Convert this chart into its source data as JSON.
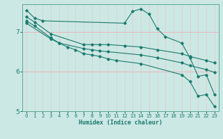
{
  "xlabel": "Humidex (Indice chaleur)",
  "ylabel": "",
  "bg_color": "#cce8e4",
  "grid_color": "#e8c8c8",
  "line_color": "#1a7a6e",
  "xlim": [
    -0.5,
    23.5
  ],
  "ylim": [
    5.0,
    7.7
  ],
  "yticks": [
    5,
    6,
    7
  ],
  "xticks": [
    0,
    1,
    2,
    3,
    4,
    5,
    6,
    7,
    8,
    9,
    10,
    11,
    12,
    13,
    14,
    15,
    16,
    17,
    18,
    19,
    20,
    21,
    22,
    23
  ],
  "series": [
    {
      "x": [
        0,
        1,
        2,
        12,
        13,
        14,
        15,
        16,
        17,
        19,
        20,
        21,
        22,
        23
      ],
      "y": [
        7.55,
        7.35,
        7.28,
        7.22,
        7.52,
        7.58,
        7.45,
        7.08,
        6.88,
        6.72,
        6.35,
        5.88,
        5.92,
        5.42
      ]
    },
    {
      "x": [
        0,
        1,
        3,
        7,
        8,
        9,
        10,
        12,
        14,
        16,
        19,
        20,
        22,
        23
      ],
      "y": [
        7.38,
        7.25,
        6.95,
        6.68,
        6.68,
        6.68,
        6.68,
        6.65,
        6.62,
        6.55,
        6.45,
        6.38,
        6.28,
        6.22
      ]
    },
    {
      "x": [
        0,
        1,
        3,
        4,
        7,
        8,
        9,
        10,
        14,
        16,
        19,
        20,
        22,
        23
      ],
      "y": [
        7.28,
        7.15,
        6.85,
        6.72,
        6.58,
        6.55,
        6.52,
        6.5,
        6.42,
        6.35,
        6.22,
        6.15,
        6.05,
        5.98
      ]
    },
    {
      "x": [
        0,
        3,
        4,
        5,
        6,
        7,
        8,
        9,
        10,
        11,
        14,
        19,
        20,
        21,
        22,
        23
      ],
      "y": [
        7.22,
        6.82,
        6.72,
        6.62,
        6.55,
        6.45,
        6.42,
        6.38,
        6.32,
        6.28,
        6.2,
        5.92,
        5.75,
        5.38,
        5.42,
        5.12
      ]
    }
  ]
}
